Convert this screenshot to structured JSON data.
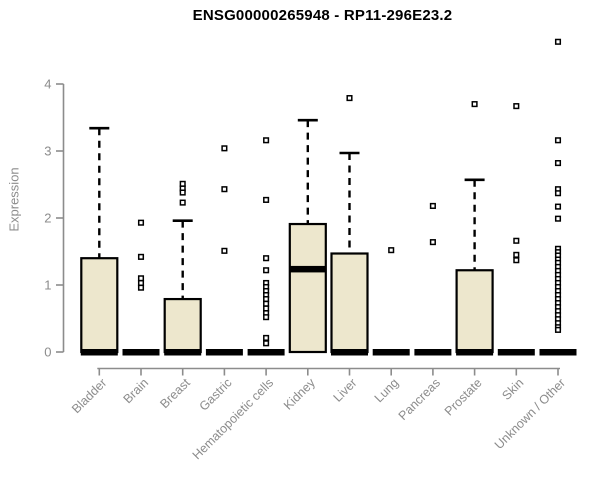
{
  "chart_data": {
    "type": "boxplot",
    "title": "ENSG00000265948 - RP11-296E23.2",
    "ylabel": "Expression",
    "xlabel": "",
    "yticks": [
      0,
      1,
      2,
      3,
      4
    ],
    "ylim": [
      0,
      4.75
    ],
    "grid": false,
    "legend": "none",
    "colors": {
      "box_fill": "#EDE7CD",
      "box_stroke": "#000000",
      "median": "#000000",
      "whisker": "#000000",
      "outlier_stroke": "#000000",
      "outlier_fill": "#FFFFFF",
      "axis": "#8C8C8C",
      "tick_label": "#8C8C8C",
      "title_color": "#000000",
      "background": "#FFFFFF"
    },
    "categories": [
      "Bladder",
      "Brain",
      "Breast",
      "Gastric",
      "Hematopoietic cells",
      "Kidney",
      "Liver",
      "Lung",
      "Pancreas",
      "Prostate",
      "Skin",
      "Unknown / Other"
    ],
    "series": [
      {
        "label": "Bladder",
        "whisker_low": 0,
        "q1": 0,
        "median": 0,
        "q3": 1.4,
        "whisker_high": 3.34,
        "outliers": []
      },
      {
        "label": "Brain",
        "whisker_low": 0,
        "q1": 0,
        "median": 0,
        "q3": 0,
        "whisker_high": 0,
        "outliers": [
          1.93,
          1.42,
          1.1,
          1.03,
          0.96
        ]
      },
      {
        "label": "Breast",
        "whisker_low": 0,
        "q1": 0,
        "median": 0,
        "q3": 0.79,
        "whisker_high": 1.96,
        "outliers": [
          2.51,
          2.44,
          2.38,
          2.23
        ]
      },
      {
        "label": "Gastric",
        "whisker_low": 0,
        "q1": 0,
        "median": 0,
        "q3": 0,
        "whisker_high": 0,
        "outliers": [
          3.04,
          2.43,
          1.51
        ]
      },
      {
        "label": "Hematopoietic cells",
        "whisker_low": 0,
        "q1": 0,
        "median": 0,
        "q3": 0,
        "whisker_high": 0,
        "outliers": [
          3.16,
          2.27,
          1.4,
          1.22,
          1.03,
          0.97,
          0.91,
          0.85,
          0.79,
          0.72,
          0.65,
          0.58,
          0.52,
          0.21,
          0.13
        ]
      },
      {
        "label": "Kidney",
        "whisker_low": 0,
        "q1": 0,
        "median": 1.24,
        "q3": 1.91,
        "whisker_high": 3.46,
        "outliers": []
      },
      {
        "label": "Liver",
        "whisker_low": 0,
        "q1": 0,
        "median": 0,
        "q3": 1.47,
        "whisker_high": 2.97,
        "outliers": [
          3.79
        ]
      },
      {
        "label": "Lung",
        "whisker_low": 0,
        "q1": 0,
        "median": 0,
        "q3": 0,
        "whisker_high": 0,
        "outliers": [
          1.52
        ]
      },
      {
        "label": "Pancreas",
        "whisker_low": 0,
        "q1": 0,
        "median": 0,
        "q3": 0,
        "whisker_high": 0,
        "outliers": [
          2.18,
          1.64
        ]
      },
      {
        "label": "Prostate",
        "whisker_low": 0,
        "q1": 0,
        "median": 0,
        "q3": 1.22,
        "whisker_high": 2.57,
        "outliers": [
          3.7
        ]
      },
      {
        "label": "Skin",
        "whisker_low": 0,
        "q1": 0,
        "median": 0,
        "q3": 0,
        "whisker_high": 0,
        "outliers": [
          3.67,
          1.66,
          1.45,
          1.37
        ]
      },
      {
        "label": "Unknown / Other",
        "whisker_low": 0,
        "q1": 0,
        "median": 0,
        "q3": 0,
        "whisker_high": 0,
        "outliers": [
          4.63,
          3.16,
          2.82,
          2.43,
          2.37,
          2.17,
          1.99,
          1.54,
          1.49,
          1.44,
          1.38,
          1.33,
          1.27,
          1.21,
          1.15,
          1.09,
          1.03,
          0.97,
          0.91,
          0.85,
          0.79,
          0.73,
          0.67,
          0.61,
          0.55,
          0.49,
          0.43,
          0.37,
          0.33
        ]
      }
    ]
  }
}
